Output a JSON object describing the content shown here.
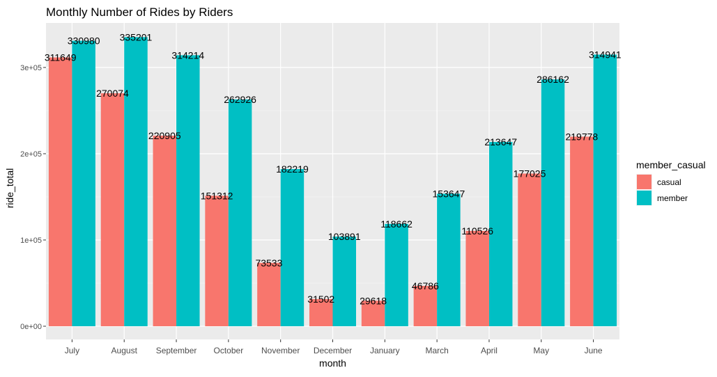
{
  "chart_data": {
    "type": "bar",
    "title": "Monthly Number of Rides by Riders",
    "xlabel": "month",
    "ylabel": "ride_total",
    "categories": [
      "July",
      "August",
      "September",
      "October",
      "November",
      "December",
      "January",
      "March",
      "April",
      "May",
      "June"
    ],
    "series": [
      {
        "name": "casual",
        "color": "#F8766D",
        "values": [
          311649,
          270074,
          220905,
          151312,
          73533,
          31502,
          29618,
          46786,
          110526,
          177025,
          219778
        ]
      },
      {
        "name": "member",
        "color": "#00BFC4",
        "values": [
          330980,
          335201,
          314214,
          262926,
          182219,
          103891,
          118662,
          153647,
          213647,
          286162,
          314941
        ]
      }
    ],
    "ylim": [
      0,
      350000
    ],
    "yticks": [
      0,
      100000,
      200000,
      300000
    ],
    "ytick_labels": [
      "0e+00",
      "1e+05",
      "2e+05",
      "3e+05"
    ],
    "legend_title": "member_casual",
    "legend_position": "right",
    "grid": true,
    "panel_background": "#EBEBEB"
  }
}
